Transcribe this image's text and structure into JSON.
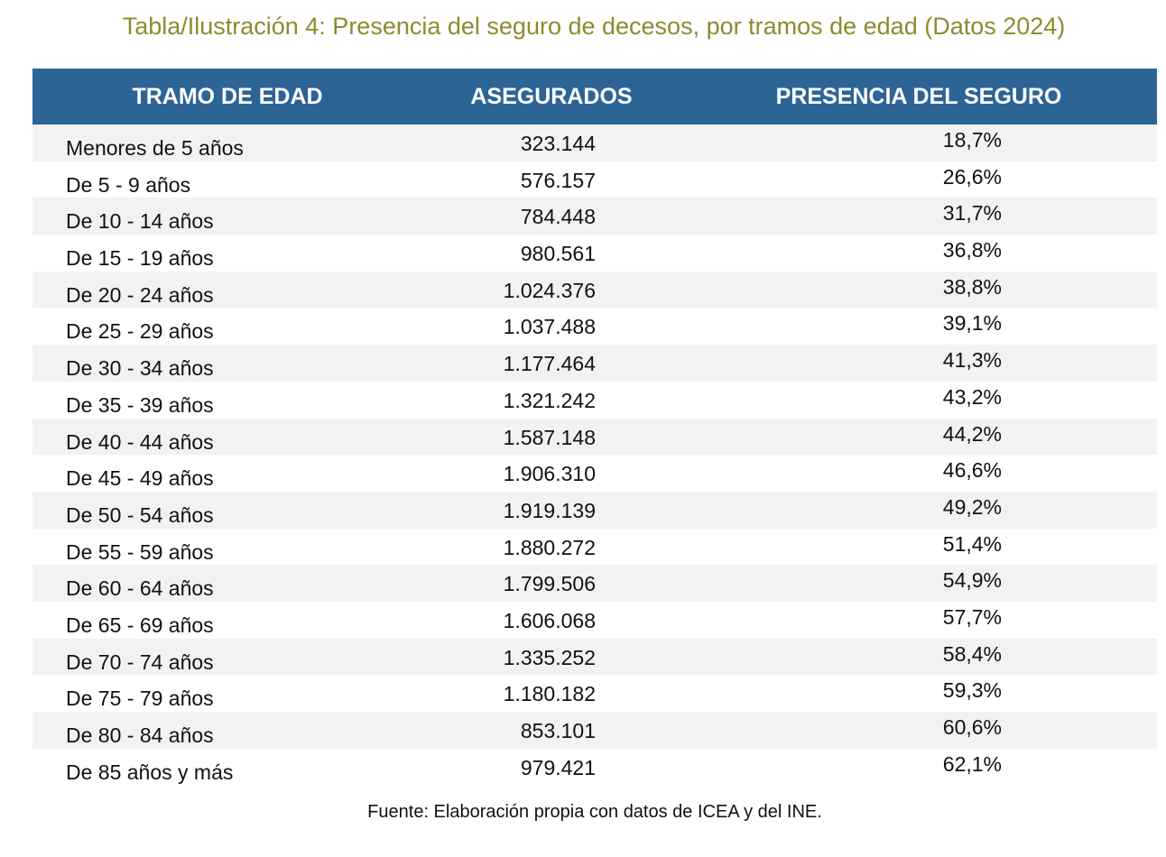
{
  "title": "Tabla/Ilustración 4: Presencia del seguro de decesos, por tramos de edad (Datos 2024)",
  "headers": [
    "TRAMO DE EDAD",
    "ASEGURADOS",
    "PRESENCIA DEL SEGURO"
  ],
  "rows": [
    {
      "age": "Menores de 5 años",
      "insured": "323.144",
      "presence": "18,7%"
    },
    {
      "age": "De 5 - 9 años",
      "insured": "576.157",
      "presence": "26,6%"
    },
    {
      "age": "De 10 - 14 años",
      "insured": "784.448",
      "presence": "31,7%"
    },
    {
      "age": "De 15 - 19 años",
      "insured": "980.561",
      "presence": "36,8%"
    },
    {
      "age": "De 20 - 24 años",
      "insured": "1.024.376",
      "presence": "38,8%"
    },
    {
      "age": "De 25 - 29 años",
      "insured": "1.037.488",
      "presence": "39,1%"
    },
    {
      "age": "De 30 - 34 años",
      "insured": "1.177.464",
      "presence": "41,3%"
    },
    {
      "age": "De 35 - 39 años",
      "insured": "1.321.242",
      "presence": "43,2%"
    },
    {
      "age": "De 40 - 44 años",
      "insured": "1.587.148",
      "presence": "44,2%"
    },
    {
      "age": "De 45 - 49 años",
      "insured": "1.906.310",
      "presence": "46,6%"
    },
    {
      "age": "De 50 - 54 años",
      "insured": "1.919.139",
      "presence": "49,2%"
    },
    {
      "age": "De 55 - 59 años",
      "insured": "1.880.272",
      "presence": "51,4%"
    },
    {
      "age": "De 60 - 64 años",
      "insured": "1.799.506",
      "presence": "54,9%"
    },
    {
      "age": "De 65 - 69 años",
      "insured": "1.606.068",
      "presence": "57,7%"
    },
    {
      "age": "De 70 - 74 años",
      "insured": "1.335.252",
      "presence": "58,4%"
    },
    {
      "age": "De 75 - 79 años",
      "insured": "1.180.182",
      "presence": "59,3%"
    },
    {
      "age": "De 80 - 84 años",
      "insured": "853.101",
      "presence": "60,6%"
    },
    {
      "age": "De 85 años y más",
      "insured": "979.421",
      "presence": "62,1%"
    }
  ],
  "source": "Fuente: Elaboración propia con datos de ICEA y del INE.",
  "colors": {
    "title": "#8f8a2e",
    "header_bg": "#2c6496",
    "row_shade": "#f2f2f2"
  }
}
